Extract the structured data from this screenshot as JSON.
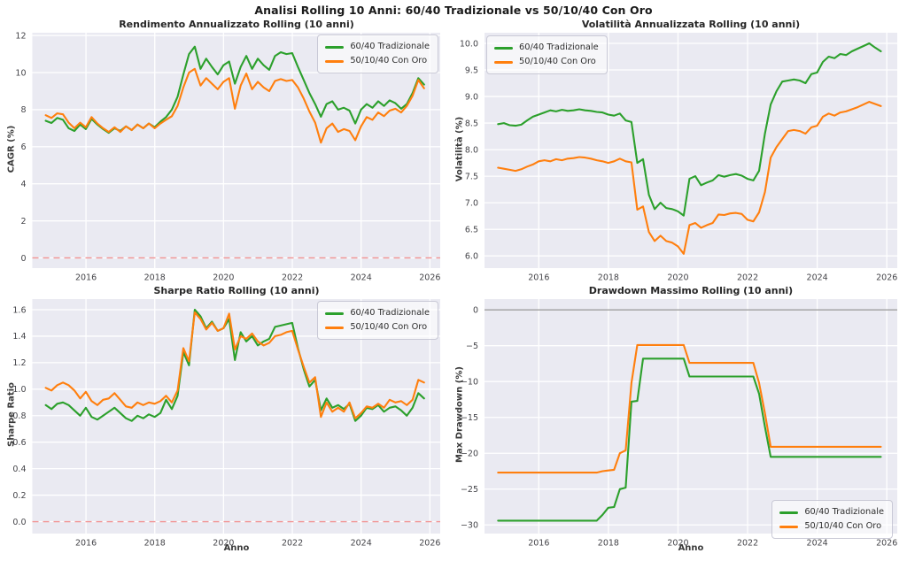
{
  "figure": {
    "title": "Analisi Rolling 10 Anni: 60/40 Tradizionale vs 50/10/40 Con Oro"
  },
  "colors": {
    "series_green": "#2ca02c",
    "series_orange": "#ff7f0e",
    "plot_background": "#eaeaf2",
    "grid": "#ffffff",
    "zero_line_red": "#f08080",
    "zero_line_gray": "#8e8e8e",
    "tick_text": "#444449"
  },
  "axis": {
    "xlim": [
      2014.44,
      2026.3
    ],
    "xticks": [
      2016,
      2018,
      2020,
      2022,
      2024,
      2026
    ],
    "xtick_labels": [
      "2016",
      "2018",
      "2020",
      "2022",
      "2024",
      "2026"
    ]
  },
  "chart_data": [
    {
      "type": "line",
      "title": "Rendimento Annualizzato Rolling (10 anni)",
      "ylabel": "CAGR (%)",
      "xlabel": "",
      "ylim": [
        -0.55,
        12.15
      ],
      "yticks": [
        0,
        2,
        4,
        6,
        8,
        10,
        12
      ],
      "ytick_labels": [
        "0",
        "2",
        "4",
        "6",
        "8",
        "10",
        "12"
      ],
      "legend_position": "top-right",
      "grid": true,
      "zero_line": {
        "value": 0,
        "color": "#f08080",
        "dashed": true
      },
      "x_start": 2014.83,
      "x_step": 0.166667,
      "series": [
        {
          "name": "60/40 Tradizionale",
          "color": "#2ca02c",
          "values": [
            7.4,
            7.28,
            7.55,
            7.45,
            7.0,
            6.85,
            7.2,
            6.95,
            7.5,
            7.2,
            6.95,
            6.75,
            7.0,
            6.85,
            7.1,
            6.9,
            7.2,
            7.0,
            7.25,
            7.05,
            7.35,
            7.6,
            8.0,
            8.7,
            9.9,
            11.0,
            11.4,
            10.2,
            10.75,
            10.3,
            9.9,
            10.4,
            10.6,
            9.4,
            10.3,
            10.9,
            10.2,
            10.75,
            10.4,
            10.15,
            10.9,
            11.1,
            11.0,
            11.05,
            10.3,
            9.6,
            8.9,
            8.3,
            7.62,
            8.3,
            8.45,
            8.0,
            8.1,
            7.95,
            7.25,
            8.0,
            8.3,
            8.1,
            8.45,
            8.2,
            8.5,
            8.35,
            8.05,
            8.3,
            8.9,
            9.7,
            9.35
          ]
        },
        {
          "name": "50/10/40 Con Oro",
          "color": "#ff7f0e",
          "values": [
            7.7,
            7.55,
            7.8,
            7.75,
            7.3,
            7.0,
            7.3,
            7.05,
            7.6,
            7.25,
            7.0,
            6.8,
            7.05,
            6.8,
            7.1,
            6.9,
            7.2,
            7.0,
            7.25,
            7.0,
            7.25,
            7.45,
            7.65,
            8.2,
            9.2,
            10.0,
            10.2,
            9.3,
            9.7,
            9.4,
            9.1,
            9.5,
            9.7,
            8.05,
            9.3,
            9.95,
            9.1,
            9.5,
            9.2,
            9.0,
            9.55,
            9.65,
            9.55,
            9.6,
            9.2,
            8.6,
            7.9,
            7.3,
            6.22,
            7.0,
            7.25,
            6.8,
            6.95,
            6.85,
            6.35,
            7.1,
            7.6,
            7.45,
            7.85,
            7.65,
            7.95,
            8.05,
            7.85,
            8.2,
            8.75,
            9.6,
            9.15
          ]
        }
      ]
    },
    {
      "type": "line",
      "title": "Volatilità Annualizzata Rolling (10 anni)",
      "ylabel": "Volatilità (%)",
      "xlabel": "",
      "ylim": [
        5.77,
        10.2
      ],
      "yticks": [
        6.0,
        6.5,
        7.0,
        7.5,
        8.0,
        8.5,
        9.0,
        9.5,
        10.0
      ],
      "ytick_labels": [
        "6.0",
        "6.5",
        "7.0",
        "7.5",
        "8.0",
        "8.5",
        "9.0",
        "9.5",
        "10.0"
      ],
      "legend_position": "top-left",
      "grid": true,
      "zero_line": null,
      "x_start": 2014.83,
      "x_step": 0.166667,
      "series": [
        {
          "name": "60/40 Tradizionale",
          "color": "#2ca02c",
          "values": [
            8.48,
            8.5,
            8.46,
            8.45,
            8.47,
            8.55,
            8.62,
            8.66,
            8.7,
            8.74,
            8.72,
            8.75,
            8.73,
            8.74,
            8.76,
            8.74,
            8.73,
            8.71,
            8.7,
            8.66,
            8.64,
            8.68,
            8.55,
            8.52,
            7.75,
            7.82,
            7.15,
            6.88,
            7.0,
            6.9,
            6.88,
            6.84,
            6.76,
            7.45,
            7.5,
            7.33,
            7.38,
            7.42,
            7.52,
            7.49,
            7.52,
            7.54,
            7.51,
            7.45,
            7.42,
            7.6,
            8.3,
            8.85,
            9.1,
            9.28,
            9.3,
            9.32,
            9.3,
            9.25,
            9.42,
            9.45,
            9.65,
            9.75,
            9.72,
            9.8,
            9.78,
            9.85,
            9.9,
            9.95,
            10.0,
            9.92,
            9.85
          ]
        },
        {
          "name": "50/10/40 Con Oro",
          "color": "#ff7f0e",
          "values": [
            7.66,
            7.64,
            7.62,
            7.6,
            7.63,
            7.68,
            7.72,
            7.78,
            7.8,
            7.78,
            7.82,
            7.8,
            7.83,
            7.84,
            7.86,
            7.85,
            7.83,
            7.8,
            7.78,
            7.75,
            7.78,
            7.83,
            7.78,
            7.76,
            6.87,
            6.93,
            6.45,
            6.28,
            6.38,
            6.28,
            6.25,
            6.18,
            6.04,
            6.58,
            6.62,
            6.53,
            6.58,
            6.62,
            6.78,
            6.77,
            6.8,
            6.81,
            6.79,
            6.68,
            6.65,
            6.82,
            7.2,
            7.85,
            8.05,
            8.2,
            8.35,
            8.37,
            8.35,
            8.3,
            8.42,
            8.45,
            8.62,
            8.68,
            8.64,
            8.7,
            8.72,
            8.76,
            8.8,
            8.85,
            8.9,
            8.86,
            8.82
          ]
        }
      ]
    },
    {
      "type": "line",
      "title": "Sharpe Ratio Rolling (10 anni)",
      "ylabel": "Sharpe Ratio",
      "xlabel": "Anno",
      "ylim": [
        -0.09,
        1.68
      ],
      "yticks": [
        0.0,
        0.2,
        0.4,
        0.6,
        0.8,
        1.0,
        1.2,
        1.4,
        1.6
      ],
      "ytick_labels": [
        "0.0",
        "0.2",
        "0.4",
        "0.6",
        "0.8",
        "1.0",
        "1.2",
        "1.4",
        "1.6"
      ],
      "legend_position": "top-right",
      "grid": true,
      "zero_line": {
        "value": 0,
        "color": "#f08080",
        "dashed": true
      },
      "x_start": 2014.83,
      "x_step": 0.166667,
      "series": [
        {
          "name": "60/40 Tradizionale",
          "color": "#2ca02c",
          "values": [
            0.88,
            0.85,
            0.89,
            0.9,
            0.88,
            0.84,
            0.8,
            0.86,
            0.79,
            0.77,
            0.8,
            0.83,
            0.86,
            0.82,
            0.78,
            0.76,
            0.8,
            0.78,
            0.81,
            0.79,
            0.82,
            0.92,
            0.85,
            0.95,
            1.28,
            1.18,
            1.6,
            1.55,
            1.46,
            1.51,
            1.44,
            1.46,
            1.53,
            1.22,
            1.43,
            1.36,
            1.4,
            1.33,
            1.36,
            1.38,
            1.47,
            1.48,
            1.49,
            1.5,
            1.31,
            1.15,
            1.02,
            1.07,
            0.84,
            0.93,
            0.86,
            0.88,
            0.85,
            0.89,
            0.76,
            0.8,
            0.86,
            0.85,
            0.88,
            0.83,
            0.86,
            0.87,
            0.84,
            0.8,
            0.86,
            0.97,
            0.93
          ]
        },
        {
          "name": "50/10/40 Con Oro",
          "color": "#ff7f0e",
          "values": [
            1.01,
            0.99,
            1.03,
            1.05,
            1.03,
            0.99,
            0.93,
            0.98,
            0.91,
            0.88,
            0.92,
            0.93,
            0.97,
            0.92,
            0.87,
            0.86,
            0.9,
            0.88,
            0.9,
            0.89,
            0.91,
            0.95,
            0.9,
            0.99,
            1.31,
            1.21,
            1.58,
            1.53,
            1.45,
            1.5,
            1.44,
            1.46,
            1.57,
            1.3,
            1.4,
            1.38,
            1.42,
            1.36,
            1.33,
            1.35,
            1.4,
            1.41,
            1.43,
            1.44,
            1.3,
            1.17,
            1.05,
            1.09,
            0.79,
            0.9,
            0.83,
            0.86,
            0.83,
            0.9,
            0.78,
            0.82,
            0.87,
            0.86,
            0.89,
            0.86,
            0.92,
            0.9,
            0.91,
            0.88,
            0.92,
            1.07,
            1.05
          ]
        }
      ]
    },
    {
      "type": "line",
      "title": "Drawdown Massimo Rolling (10 anni)",
      "ylabel": "Max Drawdown (%)",
      "xlabel": "Anno",
      "ylim": [
        -31.2,
        1.5
      ],
      "yticks": [
        0,
        -5,
        -10,
        -15,
        -20,
        -25,
        -30
      ],
      "ytick_labels": [
        "0",
        "−5",
        "−10",
        "−15",
        "−20",
        "−25",
        "−30"
      ],
      "legend_position": "bottom-right",
      "grid": true,
      "zero_line": {
        "value": 0,
        "color": "#8e8e8e",
        "dashed": false
      },
      "x_start": 2014.83,
      "x_step": 0.166667,
      "series": [
        {
          "name": "60/40 Tradizionale",
          "color": "#2ca02c",
          "values": [
            -29.4,
            -29.4,
            -29.4,
            -29.4,
            -29.4,
            -29.4,
            -29.4,
            -29.4,
            -29.4,
            -29.4,
            -29.4,
            -29.4,
            -29.4,
            -29.4,
            -29.4,
            -29.4,
            -29.4,
            -29.4,
            -28.6,
            -27.6,
            -27.5,
            -25.0,
            -24.8,
            -12.8,
            -12.7,
            -6.8,
            -6.8,
            -6.8,
            -6.8,
            -6.8,
            -6.8,
            -6.8,
            -6.8,
            -9.3,
            -9.3,
            -9.3,
            -9.3,
            -9.3,
            -9.3,
            -9.3,
            -9.3,
            -9.3,
            -9.3,
            -9.3,
            -9.3,
            -11.7,
            -16.3,
            -20.5,
            -20.5,
            -20.5,
            -20.5,
            -20.5,
            -20.5,
            -20.5,
            -20.5,
            -20.5,
            -20.5,
            -20.5,
            -20.5,
            -20.5,
            -20.5,
            -20.5,
            -20.5,
            -20.5,
            -20.5,
            -20.5,
            -20.5
          ]
        },
        {
          "name": "50/10/40 Con Oro",
          "color": "#ff7f0e",
          "values": [
            -22.7,
            -22.7,
            -22.7,
            -22.7,
            -22.7,
            -22.7,
            -22.7,
            -22.7,
            -22.7,
            -22.7,
            -22.7,
            -22.7,
            -22.7,
            -22.7,
            -22.7,
            -22.7,
            -22.7,
            -22.7,
            -22.5,
            -22.4,
            -22.3,
            -20.0,
            -19.6,
            -10.2,
            -4.9,
            -4.9,
            -4.9,
            -4.9,
            -4.9,
            -4.9,
            -4.9,
            -4.9,
            -4.9,
            -7.4,
            -7.4,
            -7.4,
            -7.4,
            -7.4,
            -7.4,
            -7.4,
            -7.4,
            -7.4,
            -7.4,
            -7.4,
            -7.4,
            -10.2,
            -14.4,
            -19.1,
            -19.1,
            -19.1,
            -19.1,
            -19.1,
            -19.1,
            -19.1,
            -19.1,
            -19.1,
            -19.1,
            -19.1,
            -19.1,
            -19.1,
            -19.1,
            -19.1,
            -19.1,
            -19.1,
            -19.1,
            -19.1,
            -19.1
          ]
        }
      ]
    }
  ]
}
